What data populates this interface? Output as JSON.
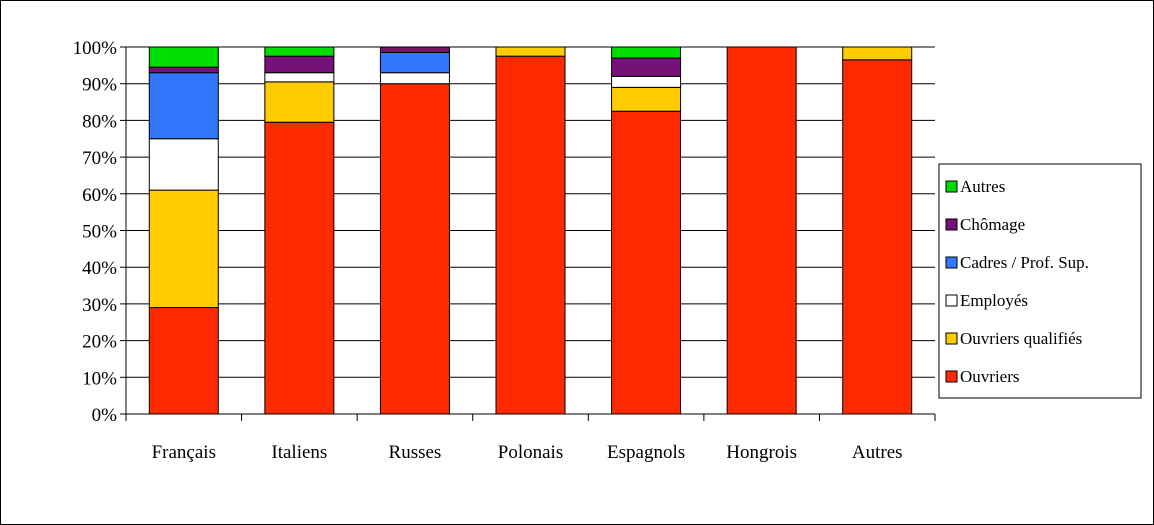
{
  "chart_data": {
    "type": "bar",
    "stacked": true,
    "percent": true,
    "categories": [
      "Français",
      "Italiens",
      "Russes",
      "Polonais",
      "Espagnols",
      "Hongrois",
      "Autres"
    ],
    "series": [
      {
        "name": "Ouvriers",
        "color": "#ff2a00",
        "values": [
          29,
          79.5,
          90,
          97.5,
          82.5,
          100,
          96.5
        ]
      },
      {
        "name": "Ouvriers qualifiés",
        "color": "#ffcc00",
        "values": [
          32,
          11,
          0,
          2.5,
          6.5,
          0,
          3.5
        ]
      },
      {
        "name": "Employés",
        "color": "#ffffff",
        "values": [
          14,
          2.5,
          3,
          0,
          3,
          0,
          0
        ]
      },
      {
        "name": "Cadres / Prof. Sup.",
        "color": "#3377ff",
        "values": [
          18,
          0,
          5.5,
          0,
          0,
          0,
          0
        ]
      },
      {
        "name": "Chômage",
        "color": "#77117a",
        "values": [
          1.5,
          4.5,
          1.5,
          0,
          5,
          0,
          0
        ]
      },
      {
        "name": "Autres",
        "color": "#00dd00",
        "values": [
          5.5,
          2.5,
          0,
          0,
          3,
          0,
          0
        ]
      }
    ],
    "ylim": [
      0,
      100
    ],
    "yticks": [
      "0%",
      "10%",
      "20%",
      "30%",
      "40%",
      "50%",
      "60%",
      "70%",
      "80%",
      "90%",
      "100%"
    ],
    "grid": true,
    "legend_position": "right",
    "title": "",
    "xlabel": "",
    "ylabel": ""
  }
}
